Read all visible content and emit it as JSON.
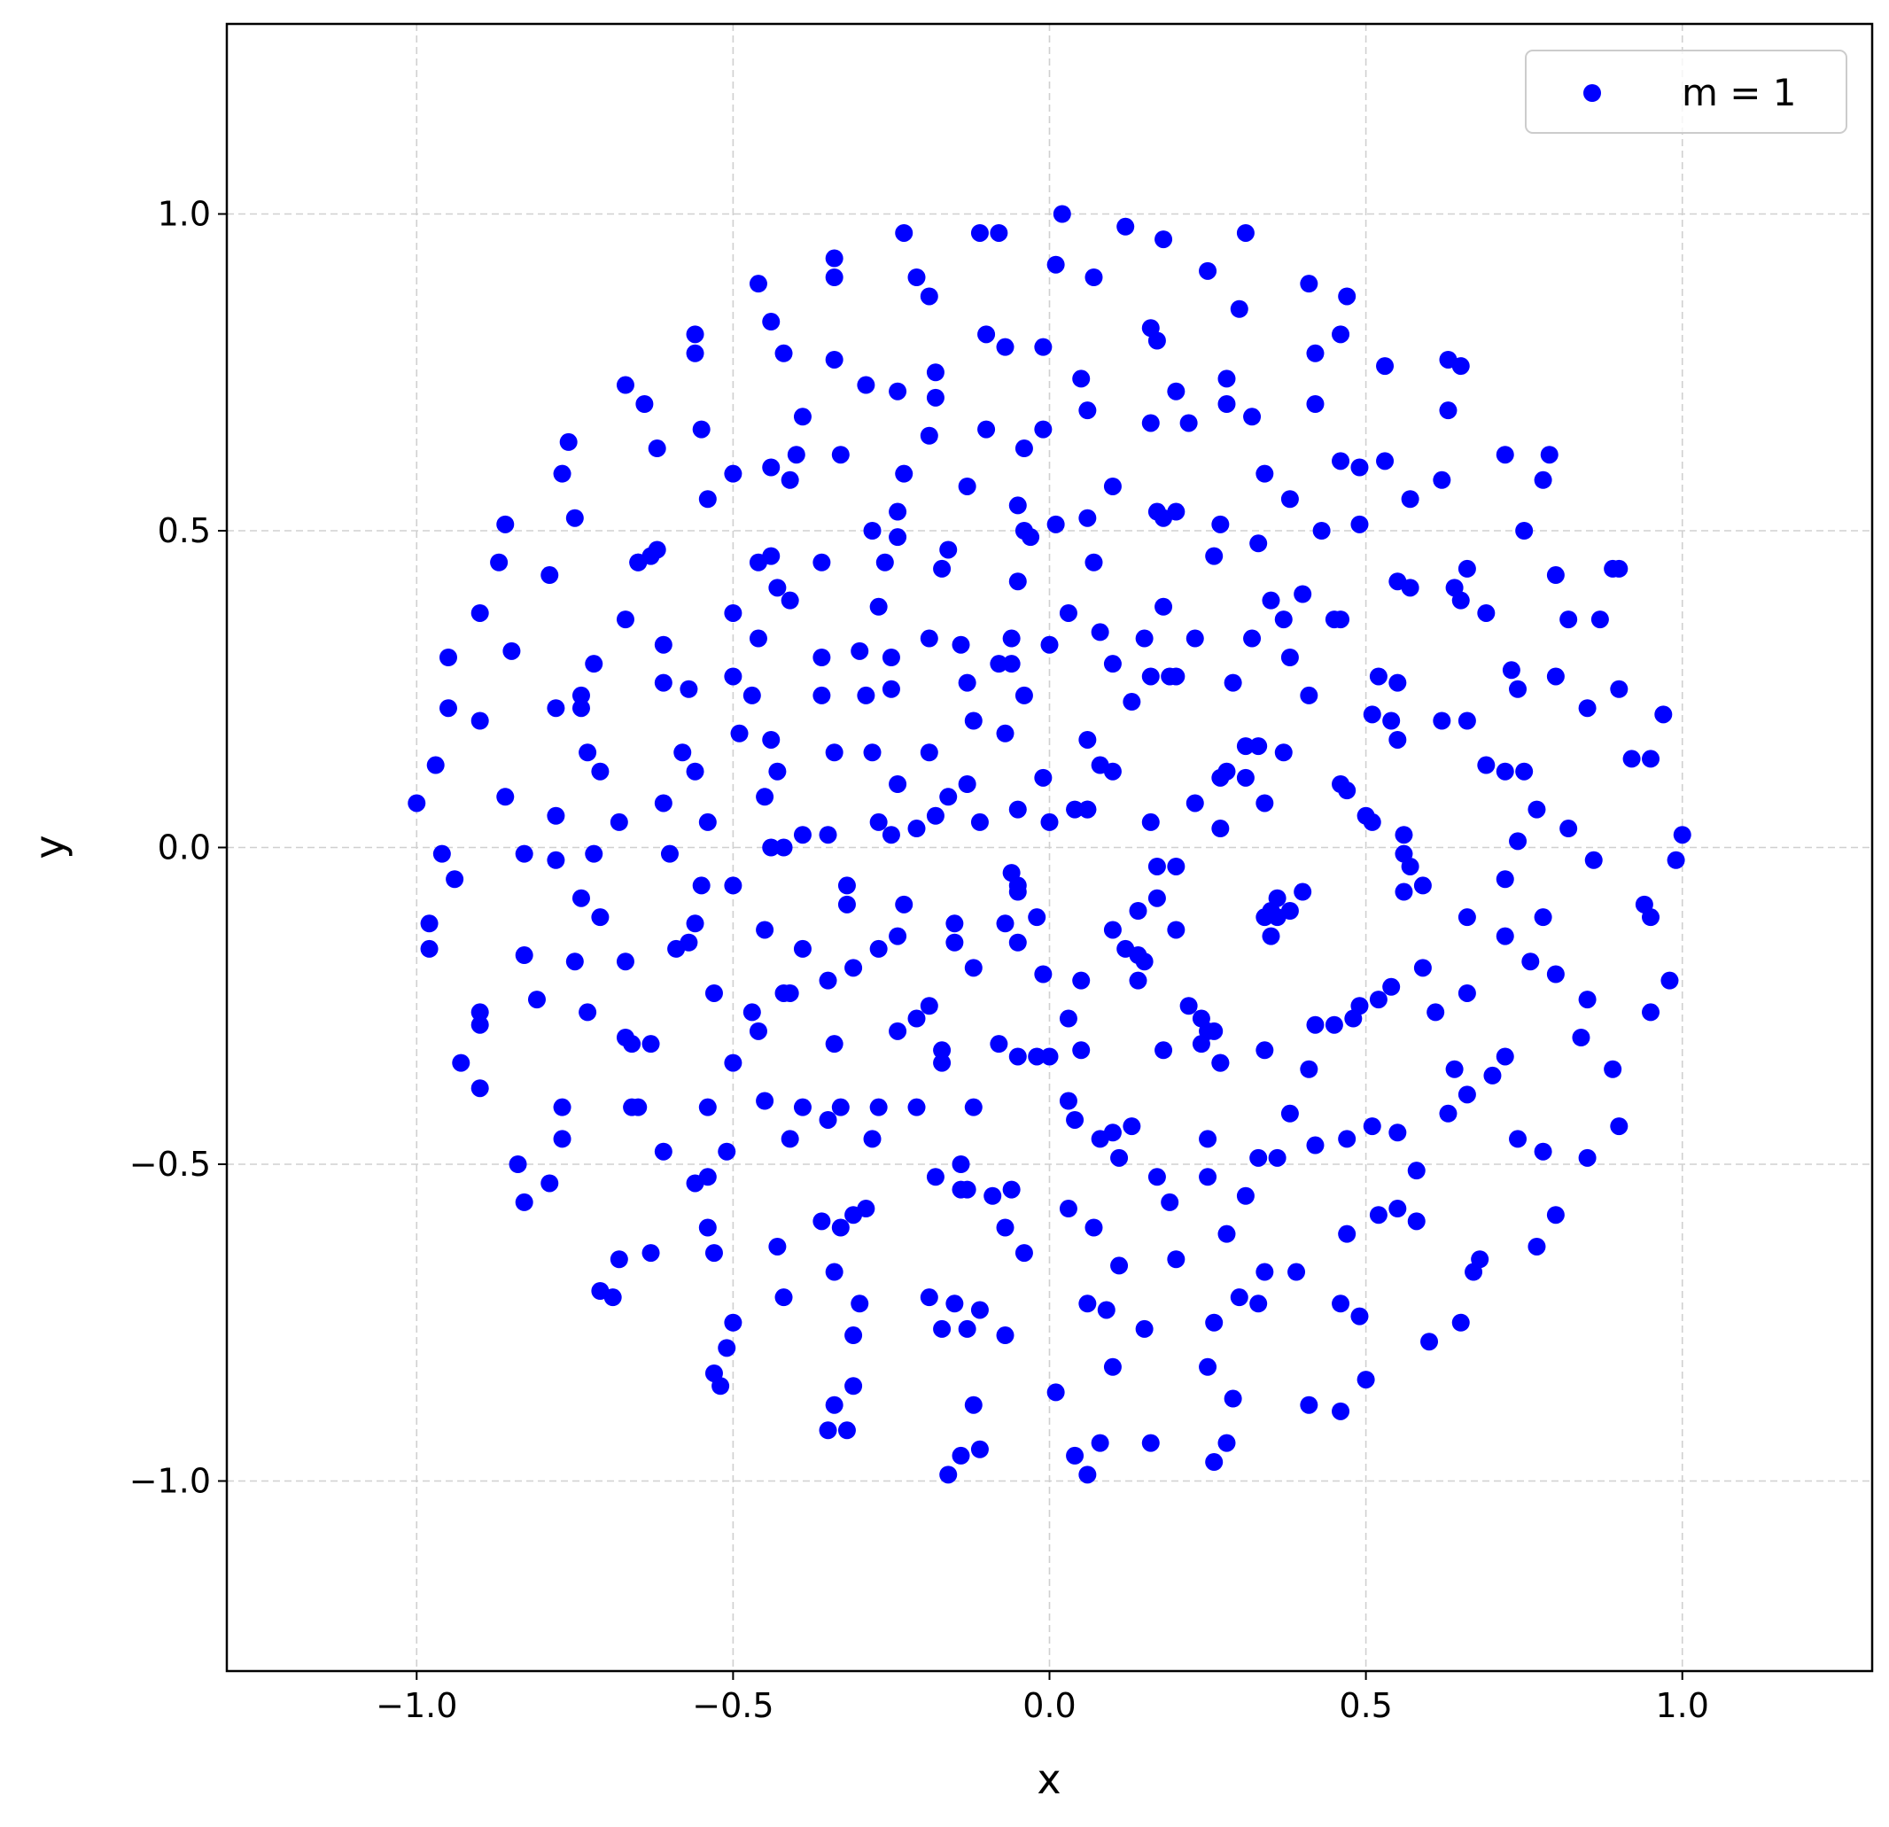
{
  "chart_data": {
    "type": "scatter",
    "xlabel": "x",
    "ylabel": "y",
    "xlim": [
      -1.3,
      1.3
    ],
    "ylim": [
      -1.3,
      1.3
    ],
    "xticks": [
      {
        "value": -1.0,
        "label": "−1.0"
      },
      {
        "value": -0.5,
        "label": "−0.5"
      },
      {
        "value": 0,
        "label": "0.0"
      },
      0.5,
      {
        "value": 1.0,
        "label": "1.0"
      }
    ],
    "yticks": [
      {
        "value": -1.0,
        "label": "−1.0"
      },
      {
        "value": -0.5,
        "label": "−0.5"
      },
      {
        "value": 0,
        "label": "0.0"
      },
      0.5,
      {
        "value": 1.0,
        "label": "1.0"
      }
    ],
    "grid": true,
    "legend": "upper right",
    "x": [
      0.02,
      0.12,
      0.18,
      0.31,
      -0.23,
      -0.11,
      -0.08,
      -0.34,
      -0.34,
      0.01,
      0.07,
      0.25,
      -0.21,
      -0.19,
      -0.46,
      0.41,
      0.47,
      0.3,
      -0.56,
      -0.56,
      -0.44,
      0.16,
      0.17,
      0.46,
      -0.1,
      -0.07,
      -0.01,
      -0.42,
      0.42,
      -0.34,
      -0.18,
      0.05,
      0.28,
      0.53,
      0.63,
      0.65,
      -0.67,
      -0.64,
      -0.29,
      -0.24,
      -0.18,
      0.2,
      0.42,
      0.28,
      0.06,
      0.32,
      0.63,
      0.22,
      -0.39,
      -0.55,
      -0.1,
      -0.01,
      0.16,
      -0.19,
      -0.62,
      -0.76,
      -0.33,
      -0.4,
      -0.44,
      -0.04,
      0.72,
      0.79,
      -0.77,
      -0.5,
      -0.41,
      -0.23,
      0.34,
      0.46,
      0.49,
      0.53,
      0.62,
      0.78,
      0.1,
      -0.13,
      -0.54,
      0.38,
      0.57,
      -0.05,
      0.17,
      0.2,
      0.18,
      -0.86,
      -0.75,
      -0.24,
      0.01,
      0.06,
      0.27,
      0.49,
      0.43,
      0.75,
      -0.28,
      -0.24,
      -0.04,
      -0.03,
      -0.62,
      -0.63,
      -0.65,
      -0.65,
      -0.87,
      -0.79,
      -0.46,
      -0.44,
      -0.36,
      -0.26,
      -0.17,
      -0.16,
      0.07,
      0.26,
      0.66,
      0.8,
      0.89,
      0.9,
      -0.43,
      -0.41,
      -0.05,
      0.33,
      0.55,
      0.57,
      0.64,
      0.65,
      0.35,
      0.4,
      0.18,
      -0.27,
      -0.9,
      -0.5,
      0.69,
      0.37,
      0.45,
      0.46,
      0.03,
      0.82,
      -0.67,
      -0.46,
      -0.19,
      -0.06,
      0.08,
      0.15,
      0.23,
      0.32,
      -0.85,
      -0.95,
      -0.61,
      -0.72,
      -0.36,
      -0.3,
      -0.25,
      -0.14,
      0.0,
      -0.08,
      -0.06,
      0.1,
      0.38,
      0.87,
      -0.5,
      0.16,
      0.19,
      0.2,
      0.29,
      0.52,
      0.55,
      0.73,
      0.8,
      -0.61,
      -0.57,
      -0.74,
      -0.78,
      -0.74,
      -0.95,
      -0.47,
      -0.36,
      -0.29,
      -0.25,
      -0.13,
      -0.04,
      0.13,
      0.41,
      0.74,
      0.9,
      -0.9,
      -0.49,
      -0.12,
      -0.07,
      0.51,
      0.54,
      0.62,
      0.66,
      0.85,
      0.97,
      0.55,
      -0.44,
      0.06,
      -0.73,
      -0.58,
      -0.34,
      -0.28,
      -0.19,
      0.31,
      0.33,
      0.37,
      -0.97,
      -0.71,
      -0.56,
      -0.43,
      0.08,
      0.1,
      -0.01,
      0.27,
      0.28,
      0.31,
      0.69,
      0.72,
      0.75,
      0.92,
      0.95,
      -0.24,
      -0.13,
      0.46,
      0.47,
      -0.86,
      -0.61,
      -0.45,
      -0.16,
      0.34,
      0.23,
      -0.05,
      0.04,
      0.06,
      0.06,
      -1.0,
      0.77,
      -0.78,
      -0.68,
      -0.54,
      -0.27,
      -0.18,
      -0.11,
      0.0,
      0.16,
      0.27,
      0.5,
      0.51,
      0.82,
      -0.35,
      -0.39,
      -0.42,
      -0.44,
      -0.25,
      -0.21,
      0.56,
      0.74,
      1.0,
      -0.83,
      -0.78,
      -0.72,
      -0.6,
      -0.96,
      0.56,
      0.86,
      0.99,
      0.17,
      0.2,
      0.57,
      -0.94,
      -0.06,
      -0.05,
      -0.05,
      -0.32,
      -0.55,
      -0.5,
      0.72,
      0.59,
      0.56,
      0.36,
      0.4,
      0.17,
      -0.74,
      -0.32,
      -0.23,
      0.14,
      0.35,
      0.36,
      0.38,
      0.34,
      0.94,
      0.95,
      -0.98,
      -0.71,
      -0.56,
      0.66,
      0.78,
      -0.15,
      -0.07,
      -0.02,
      0.1,
      0.2,
      0.35,
      0.72,
      -0.45,
      -0.24,
      -0.98,
      -0.57,
      -0.59,
      -0.39,
      -0.15,
      -0.05,
      0.12,
      0.14,
      0.15,
      -0.83,
      -0.75,
      -0.67,
      0.76,
      -0.31,
      -0.12,
      0.59,
      0.8,
      -0.01,
      0.98,
      -0.35,
      -0.27,
      0.05,
      0.14,
      0.54,
      -0.53,
      -0.42,
      -0.41,
      -0.81,
      0.66,
      -0.19,
      0.49,
      0.52,
      0.85,
      -0.9,
      -0.73,
      -0.47,
      -0.21,
      0.03,
      0.22,
      0.61,
      0.95,
      0.24,
      0.48,
      0.45,
      0.42,
      -0.9,
      -0.46,
      -0.24,
      0.25,
      0.26,
      0.24,
      -0.67,
      -0.66,
      -0.63,
      -0.34,
      -0.17,
      -0.08,
      0.05,
      0.18,
      0.34,
      0.84,
      -0.05,
      -0.02,
      0.0,
      0.27,
      0.27,
      -0.93,
      -0.5,
      -0.17,
      0.72,
      0.41,
      0.64,
      0.89,
      0.7,
      -0.9,
      0.66,
      -0.45,
      0.03,
      -0.66,
      -0.65,
      -0.54,
      -0.39,
      -0.33,
      -0.27,
      -0.21,
      -0.12,
      -0.77,
      0.38,
      0.63,
      -0.35,
      0.04,
      0.51,
      0.9,
      0.13,
      0.55,
      0.1,
      0.08,
      -0.41,
      -0.28,
      -0.77,
      0.25,
      0.42,
      0.47,
      0.74,
      0.78,
      -0.61,
      -0.51,
      0.36,
      0.33,
      0.11,
      0.85,
      -0.84,
      -0.14,
      0.58,
      0.25,
      0.17,
      -0.18,
      -0.54,
      -0.56,
      -0.79,
      -0.14,
      -0.13,
      -0.06,
      0.31,
      -0.83,
      -0.09,
      0.19,
      0.55,
      0.52,
      0.03,
      0.8,
      -0.29,
      -0.31,
      0.58,
      -0.36,
      -0.33,
      -0.54,
      -0.07,
      0.07,
      0.28,
      0.47,
      0.77,
      -0.43,
      -0.53,
      -0.63,
      -0.04,
      0.2,
      0.68,
      -0.68,
      0.11,
      0.39,
      0.34,
      0.67,
      -0.34,
      -0.71,
      -0.69,
      -0.42,
      -0.19,
      -0.15,
      -0.3,
      0.06,
      0.09,
      0.3,
      0.33,
      -0.11,
      0.46,
      0.49,
      -0.5,
      0.26,
      0.65,
      -0.31,
      -0.17,
      -0.13,
      0.15,
      -0.07,
      0.6,
      -0.51,
      0.1,
      0.25,
      -0.53,
      0.5,
      -0.52,
      -0.31,
      0.01,
      0.29,
      -0.34,
      -0.12,
      0.41,
      0.46,
      -0.35,
      -0.32,
      0.16,
      0.08,
      0.28,
      -0.11,
      -0.14,
      0.04,
      0.26,
      -0.16,
      0.06
    ],
    "series": [
      {
        "name": "m = 1",
        "color": "#0000ff",
        "values": [
          1.0,
          0.98,
          0.96,
          0.97,
          0.97,
          0.97,
          0.97,
          0.93,
          0.9,
          0.92,
          0.9,
          0.91,
          0.9,
          0.87,
          0.89,
          0.89,
          0.87,
          0.85,
          0.81,
          0.78,
          0.83,
          0.82,
          0.8,
          0.81,
          0.81,
          0.79,
          0.79,
          0.78,
          0.78,
          0.77,
          0.75,
          0.74,
          0.74,
          0.76,
          0.77,
          0.76,
          0.73,
          0.7,
          0.73,
          0.72,
          0.71,
          0.72,
          0.7,
          0.7,
          0.69,
          0.68,
          0.69,
          0.67,
          0.68,
          0.66,
          0.66,
          0.66,
          0.67,
          0.65,
          0.63,
          0.64,
          0.62,
          0.62,
          0.6,
          0.63,
          0.62,
          0.62,
          0.59,
          0.59,
          0.58,
          0.59,
          0.59,
          0.61,
          0.6,
          0.61,
          0.58,
          0.58,
          0.57,
          0.57,
          0.55,
          0.55,
          0.55,
          0.54,
          0.53,
          0.53,
          0.52,
          0.51,
          0.52,
          0.53,
          0.51,
          0.52,
          0.51,
          0.51,
          0.5,
          0.5,
          0.5,
          0.49,
          0.5,
          0.49,
          0.47,
          0.46,
          0.45,
          0.45,
          0.45,
          0.43,
          0.45,
          0.46,
          0.45,
          0.45,
          0.44,
          0.47,
          0.45,
          0.46,
          0.44,
          0.43,
          0.44,
          0.44,
          0.41,
          0.39,
          0.42,
          0.48,
          0.42,
          0.41,
          0.41,
          0.39,
          0.39,
          0.4,
          0.38,
          0.38,
          0.37,
          0.37,
          0.37,
          0.36,
          0.36,
          0.36,
          0.37,
          0.36,
          0.36,
          0.33,
          0.33,
          0.33,
          0.34,
          0.33,
          0.33,
          0.33,
          0.31,
          0.3,
          0.32,
          0.29,
          0.3,
          0.31,
          0.3,
          0.32,
          0.32,
          0.29,
          0.29,
          0.29,
          0.3,
          0.36,
          0.27,
          0.27,
          0.27,
          0.27,
          0.26,
          0.27,
          0.26,
          0.28,
          0.27,
          0.26,
          0.25,
          0.24,
          0.22,
          0.22,
          0.22,
          0.24,
          0.24,
          0.24,
          0.25,
          0.26,
          0.24,
          0.23,
          0.24,
          0.25,
          0.25,
          0.2,
          0.18,
          0.2,
          0.18,
          0.21,
          0.2,
          0.2,
          0.2,
          0.22,
          0.21,
          0.17,
          0.17,
          0.17,
          0.15,
          0.15,
          0.15,
          0.15,
          0.15,
          0.16,
          0.16,
          0.15,
          0.13,
          0.12,
          0.12,
          0.12,
          0.13,
          0.12,
          0.11,
          0.11,
          0.12,
          0.11,
          0.13,
          0.12,
          0.12,
          0.14,
          0.14,
          0.1,
          0.1,
          0.1,
          0.09,
          0.08,
          0.07,
          0.08,
          0.08,
          0.07,
          0.07,
          0.06,
          0.06,
          0.06,
          0.06,
          0.07,
          0.06,
          0.05,
          0.04,
          0.04,
          0.04,
          0.05,
          0.04,
          0.04,
          0.04,
          0.03,
          0.05,
          0.04,
          0.03,
          0.02,
          0.02,
          0.0,
          0.0,
          0.02,
          0.03,
          0.02,
          0.01,
          0.02,
          -0.01,
          -0.02,
          -0.01,
          -0.01,
          -0.01,
          -0.01,
          -0.02,
          -0.02,
          -0.03,
          -0.03,
          -0.03,
          -0.05,
          -0.04,
          -0.06,
          -0.07,
          -0.06,
          -0.06,
          -0.06,
          -0.05,
          -0.06,
          -0.07,
          -0.08,
          -0.07,
          -0.08,
          -0.08,
          -0.09,
          -0.09,
          -0.1,
          -0.1,
          -0.11,
          -0.1,
          -0.11,
          -0.09,
          -0.11,
          -0.12,
          -0.11,
          -0.12,
          -0.11,
          -0.11,
          -0.12,
          -0.12,
          -0.11,
          -0.13,
          -0.13,
          -0.14,
          -0.14,
          -0.13,
          -0.14,
          -0.16,
          -0.15,
          -0.16,
          -0.16,
          -0.15,
          -0.15,
          -0.16,
          -0.17,
          -0.18,
          -0.17,
          -0.18,
          -0.18,
          -0.18,
          -0.19,
          -0.19,
          -0.19,
          -0.2,
          -0.2,
          -0.21,
          -0.21,
          -0.16,
          -0.21,
          -0.21,
          -0.22,
          -0.23,
          -0.23,
          -0.23,
          -0.24,
          -0.23,
          -0.25,
          -0.25,
          -0.24,
          -0.24,
          -0.26,
          -0.26,
          -0.26,
          -0.27,
          -0.27,
          -0.25,
          -0.26,
          -0.26,
          -0.27,
          -0.27,
          -0.28,
          -0.28,
          -0.28,
          -0.29,
          -0.29,
          -0.29,
          -0.29,
          -0.31,
          -0.3,
          -0.31,
          -0.31,
          -0.31,
          -0.32,
          -0.31,
          -0.32,
          -0.32,
          -0.32,
          -0.3,
          -0.33,
          -0.33,
          -0.33,
          -0.34,
          -0.34,
          -0.34,
          -0.34,
          -0.34,
          -0.33,
          -0.35,
          -0.35,
          -0.35,
          -0.36,
          -0.38,
          -0.39,
          -0.4,
          -0.4,
          -0.41,
          -0.41,
          -0.41,
          -0.41,
          -0.41,
          -0.41,
          -0.41,
          -0.41,
          -0.41,
          -0.42,
          -0.42,
          -0.43,
          -0.43,
          -0.44,
          -0.44,
          -0.44,
          -0.45,
          -0.45,
          -0.46,
          -0.46,
          -0.46,
          -0.46,
          -0.46,
          -0.47,
          -0.46,
          -0.46,
          -0.48,
          -0.48,
          -0.48,
          -0.49,
          -0.49,
          -0.49,
          -0.49,
          -0.5,
          -0.5,
          -0.51,
          -0.52,
          -0.52,
          -0.52,
          -0.52,
          -0.53,
          -0.53,
          -0.54,
          -0.54,
          -0.54,
          -0.55,
          -0.56,
          -0.55,
          -0.56,
          -0.57,
          -0.58,
          -0.57,
          -0.58,
          -0.57,
          -0.58,
          -0.59,
          -0.59,
          -0.6,
          -0.6,
          -0.6,
          -0.6,
          -0.61,
          -0.61,
          -0.63,
          -0.63,
          -0.64,
          -0.64,
          -0.64,
          -0.65,
          -0.65,
          -0.65,
          -0.66,
          -0.67,
          -0.67,
          -0.67,
          -0.67,
          -0.7,
          -0.71,
          -0.71,
          -0.71,
          -0.72,
          -0.72,
          -0.72,
          -0.73,
          -0.71,
          -0.72,
          -0.73,
          -0.72,
          -0.74,
          -0.75,
          -0.75,
          -0.75,
          -0.77,
          -0.76,
          -0.76,
          -0.76,
          -0.77,
          -0.78,
          -0.79,
          -0.82,
          -0.82,
          -0.83,
          -0.84,
          -0.85,
          -0.85,
          -0.86,
          -0.87,
          -0.88,
          -0.88,
          -0.88,
          -0.89,
          -0.92,
          -0.92,
          -0.94,
          -0.94,
          -0.94,
          -0.95,
          -0.96,
          -0.96,
          -0.97,
          -0.99,
          -0.99
        ]
      }
    ]
  }
}
